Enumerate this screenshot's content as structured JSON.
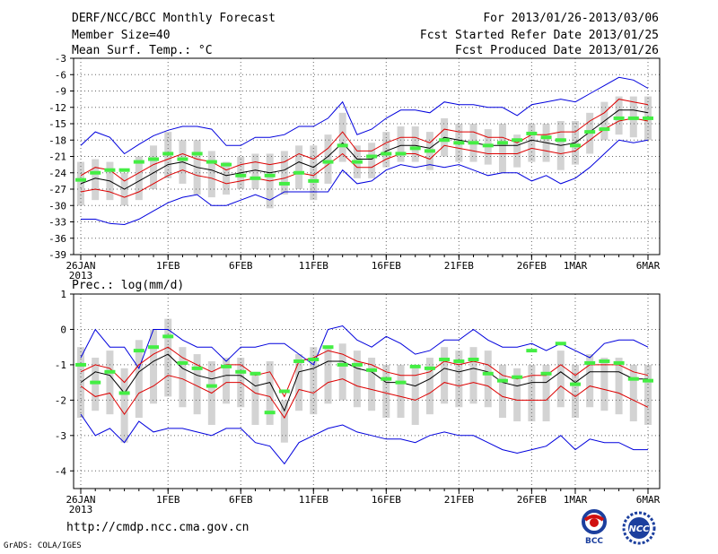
{
  "header": {
    "title": "DERF/NCC/BCC Monthly Forecast",
    "member_size": "Member Size=40",
    "variable": "Mean Surf. Temp.: °C",
    "period": "For 2013/01/26-2013/03/06",
    "started": "Fcst Started Refer Date 2013/01/25",
    "produced": "Fcst Produced Date 2013/01/26"
  },
  "footer": {
    "url": "http://cmdp.ncc.cma.gov.cn",
    "grads": "GrADS: COLA/IGES",
    "logo_bcc_text": "BCC",
    "logo_ncc_text": "NCC"
  },
  "colors": {
    "box": "#d3d3d3",
    "observed": "#44ee44",
    "mean": "#000000",
    "inner": "#dd0000",
    "outer": "#0000dd",
    "grid": "#666666"
  },
  "chart_data": [
    {
      "type": "line",
      "title": "Mean Surf. Temp.: °C",
      "x_ticks": [
        "26JAN",
        "1FEB",
        "6FEB",
        "11FEB",
        "16FEB",
        "21FEB",
        "26FEB",
        "1MAR",
        "6MAR"
      ],
      "x_year_label": "2013",
      "ylim": [
        -39,
        -3
      ],
      "y_ticks": [
        "-3",
        "-6",
        "-9",
        "-12",
        "-15",
        "-18",
        "-21",
        "-24",
        "-27",
        "-30",
        "-33",
        "-36",
        "-39"
      ],
      "days": 40,
      "series": [
        {
          "name": "upper",
          "values": [
            -19,
            -16.5,
            -17.5,
            -20.5,
            -18.8,
            -17.2,
            -16.2,
            -15.5,
            -15.5,
            -16,
            -19,
            -19,
            -17.5,
            -17.5,
            -17,
            -15.5,
            -15.5,
            -14,
            -11,
            -17,
            -16,
            -14,
            -12.5,
            -12.5,
            -13,
            -11,
            -11.5,
            -11.5,
            -12,
            -12,
            -13.5,
            -11.5,
            -11,
            -10.5,
            -11,
            -9.5,
            -8,
            -6.5,
            -7,
            -8.5
          ]
        },
        {
          "name": "p75",
          "values": [
            -24.5,
            -23,
            -23.5,
            -25.5,
            -24,
            -22.5,
            -21.5,
            -20.5,
            -21.5,
            -22,
            -23.5,
            -22.5,
            -22,
            -22.5,
            -22,
            -20.5,
            -21.5,
            -19.5,
            -16.5,
            -20,
            -20,
            -18.5,
            -17.5,
            -17.5,
            -18.5,
            -16,
            -16.5,
            -16.5,
            -17.5,
            -17.5,
            -18.5,
            -17,
            -17,
            -16.5,
            -16.5,
            -14.5,
            -13,
            -10.5,
            -11,
            -11.5
          ]
        },
        {
          "name": "mean",
          "values": [
            -26,
            -25,
            -25.5,
            -27,
            -25.5,
            -24,
            -22.5,
            -22,
            -23,
            -23.5,
            -24.5,
            -24,
            -23.5,
            -24,
            -23.5,
            -22,
            -23,
            -21,
            -18.5,
            -21.5,
            -21.5,
            -20,
            -19,
            -19,
            -19.5,
            -17.5,
            -18,
            -18.5,
            -19,
            -19,
            -19,
            -18,
            -18.5,
            -19,
            -18.5,
            -16.5,
            -14.5,
            -12.5,
            -12.5,
            -13
          ]
        },
        {
          "name": "p25",
          "values": [
            -27.5,
            -27,
            -27.5,
            -28.5,
            -27.5,
            -26,
            -24.5,
            -23.5,
            -24.5,
            -25,
            -26,
            -25.5,
            -25,
            -25.5,
            -25,
            -24,
            -24.5,
            -22.5,
            -20.5,
            -23,
            -23,
            -21.5,
            -20.5,
            -20.5,
            -21.5,
            -19,
            -19.5,
            -20,
            -20.5,
            -20.5,
            -20.5,
            -19.5,
            -20,
            -20.5,
            -20,
            -18,
            -16,
            -14.5,
            -14,
            -14.5
          ]
        },
        {
          "name": "lower",
          "values": [
            -32.5,
            -32.5,
            -33.3,
            -33.5,
            -32.5,
            -31,
            -29.5,
            -28.5,
            -28,
            -30,
            -30,
            -29,
            -28,
            -29,
            -27.5,
            -27.5,
            -27.5,
            -27.5,
            -23.5,
            -26,
            -25.5,
            -23.5,
            -22.5,
            -23,
            -22.5,
            -23,
            -22.5,
            -23.5,
            -24.5,
            -24,
            -24,
            -25.5,
            -24.5,
            -26,
            -25,
            -23,
            -20.5,
            -18,
            -18.5,
            -18
          ]
        },
        {
          "name": "box_high",
          "values": [
            -22,
            -21.5,
            -22,
            -24,
            -21,
            -19,
            -16.5,
            -18,
            -18,
            -20,
            -22,
            -21,
            -20.5,
            -20.5,
            -20,
            -19,
            -19,
            -17,
            -13,
            -19,
            -18.5,
            -16.5,
            -15.5,
            -15.5,
            -16.5,
            -14,
            -15,
            -15,
            -16,
            -15,
            -17,
            -15,
            -15,
            -14.5,
            -14.5,
            -13,
            -11,
            -10,
            -10,
            -10
          ]
        },
        {
          "name": "box_low",
          "values": [
            -30,
            -29,
            -29,
            -30,
            -29,
            -27,
            -25,
            -26,
            -28,
            -28.5,
            -28,
            -27,
            -27,
            -30.5,
            -28,
            -27,
            -29,
            -26,
            -22,
            -25,
            -25,
            -23,
            -22,
            -22,
            -23.5,
            -21,
            -22,
            -22,
            -22.5,
            -24,
            -23,
            -22,
            -22,
            -23.5,
            -22.5,
            -20.5,
            -18,
            -17,
            -17.5,
            -18
          ]
        },
        {
          "name": "observed",
          "values": [
            -25.3,
            -24,
            -23.5,
            -23.5,
            -22,
            -21.5,
            -20.5,
            -21.5,
            -20.5,
            -22,
            -22.5,
            -24.5,
            -25,
            -24.5,
            -26,
            -24,
            -25.5,
            -22,
            -19,
            -22,
            -21,
            -20.5,
            -20.5,
            -19.5,
            -20,
            -18,
            -18.5,
            -18.5,
            -19,
            -18.5,
            -18,
            -16.8,
            -17.5,
            -18,
            -19,
            -16.5,
            -16,
            -14,
            -14,
            -14
          ]
        }
      ]
    },
    {
      "type": "line",
      "title": "Prec.: log(mm/d)",
      "x_ticks": [
        "26JAN",
        "1FEB",
        "6FEB",
        "11FEB",
        "16FEB",
        "21FEB",
        "26FEB",
        "1MAR",
        "6MAR"
      ],
      "x_year_label": "2013",
      "ylim": [
        -4.5,
        1
      ],
      "y_ticks": [
        "1",
        "0",
        "-1",
        "-2",
        "-3",
        "-4"
      ],
      "days": 40,
      "series": [
        {
          "name": "upper",
          "values": [
            -0.8,
            0,
            -0.5,
            -0.5,
            -1.1,
            0,
            0,
            -0.3,
            -0.5,
            -0.5,
            -0.9,
            -0.5,
            -0.5,
            -0.4,
            -0.4,
            -0.7,
            -1,
            0,
            0.1,
            -0.3,
            -0.5,
            -0.2,
            -0.4,
            -0.7,
            -0.6,
            -0.3,
            -0.3,
            0,
            -0.3,
            -0.5,
            -0.5,
            -0.4,
            -0.6,
            -0.4,
            -0.6,
            -0.8,
            -0.4,
            -0.3,
            -0.3,
            -0.5
          ]
        },
        {
          "name": "p75",
          "values": [
            -1.2,
            -1,
            -1.1,
            -1.5,
            -1,
            -0.7,
            -0.5,
            -0.8,
            -1,
            -1.2,
            -1,
            -1,
            -1.3,
            -1.2,
            -1.9,
            -0.9,
            -0.8,
            -0.6,
            -0.7,
            -0.9,
            -1,
            -1.2,
            -1.3,
            -1.3,
            -1.2,
            -0.9,
            -1,
            -0.9,
            -1,
            -1.3,
            -1.4,
            -1.3,
            -1.3,
            -1,
            -1.3,
            -1,
            -1,
            -1,
            -1.2,
            -1.3
          ]
        },
        {
          "name": "mean",
          "values": [
            -1.5,
            -1.2,
            -1.3,
            -1.8,
            -1.2,
            -0.9,
            -0.7,
            -1.1,
            -1.3,
            -1.4,
            -1.3,
            -1.3,
            -1.6,
            -1.5,
            -2.3,
            -1.2,
            -1.1,
            -0.9,
            -0.9,
            -1.1,
            -1.2,
            -1.5,
            -1.5,
            -1.6,
            -1.4,
            -1.1,
            -1.2,
            -1.1,
            -1.2,
            -1.5,
            -1.6,
            -1.5,
            -1.5,
            -1.2,
            -1.5,
            -1.2,
            -1.2,
            -1.2,
            -1.4,
            -1.4
          ]
        },
        {
          "name": "p25",
          "values": [
            -1.6,
            -1.9,
            -1.8,
            -2.4,
            -1.8,
            -1.6,
            -1.3,
            -1.4,
            -1.6,
            -1.8,
            -1.5,
            -1.5,
            -1.8,
            -1.9,
            -2.5,
            -1.7,
            -1.8,
            -1.5,
            -1.4,
            -1.6,
            -1.7,
            -1.8,
            -1.9,
            -2,
            -1.8,
            -1.5,
            -1.6,
            -1.5,
            -1.6,
            -1.9,
            -2,
            -2,
            -2,
            -1.6,
            -1.9,
            -1.6,
            -1.7,
            -1.8,
            -2,
            -2.2
          ]
        },
        {
          "name": "lower",
          "values": [
            -2.4,
            -3,
            -2.8,
            -3.2,
            -2.6,
            -2.9,
            -2.8,
            -2.8,
            -2.9,
            -3,
            -2.8,
            -2.8,
            -3.2,
            -3.3,
            -3.8,
            -3.2,
            -3,
            -2.8,
            -2.7,
            -2.9,
            -3,
            -3.1,
            -3.1,
            -3.2,
            -3,
            -2.9,
            -3,
            -3,
            -3.2,
            -3.4,
            -3.5,
            -3.4,
            -3.3,
            -3,
            -3.4,
            -3.1,
            -3.2,
            -3.2,
            -3.4,
            -3.4
          ]
        },
        {
          "name": "box_high",
          "values": [
            -0.5,
            -0.8,
            -0.6,
            -1.1,
            -0.3,
            0,
            0.3,
            -0.5,
            -0.7,
            -0.9,
            -0.8,
            -0.8,
            -1.2,
            -0.9,
            -2,
            -0.7,
            -0.5,
            -0.5,
            -0.4,
            -0.6,
            -0.8,
            -1,
            -1,
            -1.1,
            -0.8,
            -0.5,
            -0.6,
            -0.5,
            -0.6,
            -1,
            -1.1,
            -1,
            -1,
            -0.6,
            -1,
            -0.7,
            -0.8,
            -0.8,
            -1,
            -1
          ]
        },
        {
          "name": "box_low",
          "values": [
            -2.5,
            -2.3,
            -2.4,
            -3.2,
            -2.5,
            -2.1,
            -1.9,
            -2.2,
            -2.4,
            -2.7,
            -2.1,
            -2.2,
            -2.7,
            -2.7,
            -3.2,
            -2.3,
            -2.4,
            -2.1,
            -2,
            -2.2,
            -2.3,
            -2.5,
            -2.5,
            -2.7,
            -2.4,
            -2.1,
            -2.2,
            -2.1,
            -2.2,
            -2.5,
            -2.6,
            -2.6,
            -2.6,
            -2.2,
            -2.5,
            -2.2,
            -2.3,
            -2.4,
            -2.6,
            -2.7
          ]
        },
        {
          "name": "observed",
          "values": [
            -1,
            -1.5,
            -1.2,
            -1.8,
            -0.6,
            -0.5,
            -0.2,
            -0.95,
            -1.1,
            -1.6,
            -1.05,
            -1.2,
            -1.25,
            -2.35,
            -1.75,
            -0.9,
            -0.85,
            -0.5,
            -1,
            -1,
            -1.15,
            -1.4,
            -1.5,
            -1.05,
            -1.1,
            -0.85,
            -0.9,
            -0.85,
            -1.25,
            -1.45,
            -1.35,
            -0.6,
            -1.25,
            -0.4,
            -1.55,
            -0.95,
            -0.9,
            -0.95,
            -1.4,
            -1.45
          ]
        }
      ]
    }
  ]
}
